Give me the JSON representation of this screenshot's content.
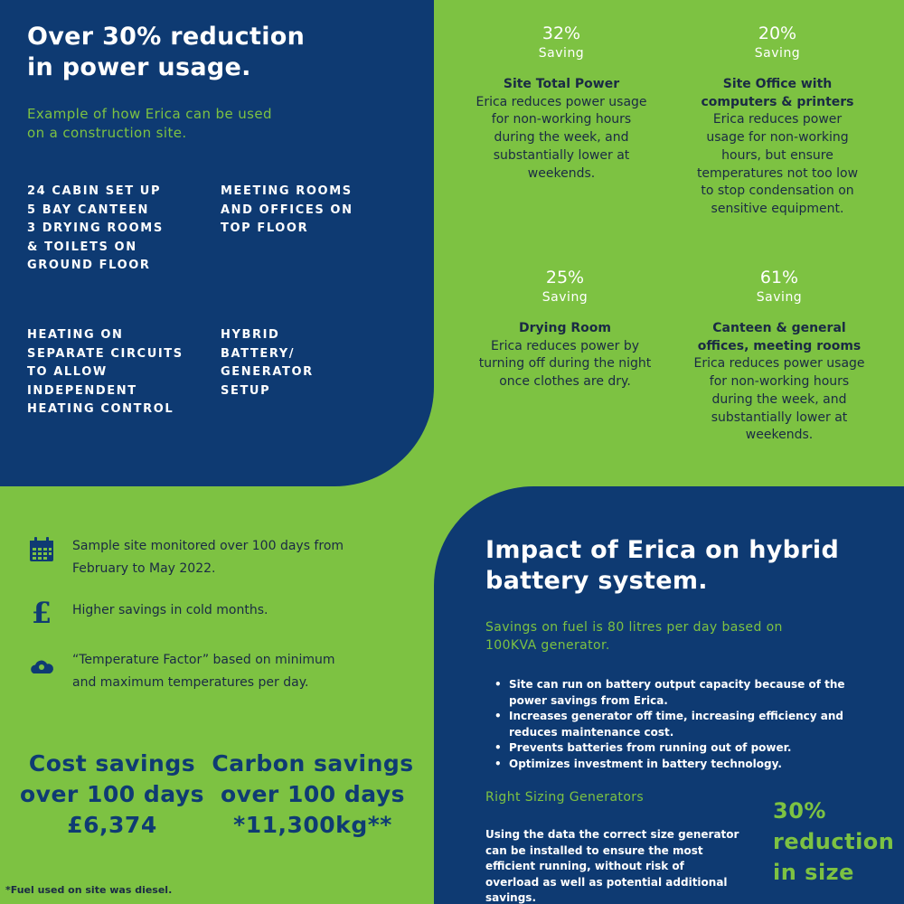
{
  "top_left": {
    "title_line1": "Over 30% reduction",
    "title_line2": "in power usage.",
    "subtitle_line1": "Example of how Erica can be used",
    "subtitle_line2": "on a construction site.",
    "block1": "24 CABIN SET UP\n5 BAY CANTEEN\n3 DRYING ROOMS\n& TOILETS ON\nGROUND FLOOR",
    "block2": "MEETING ROOMS\nAND OFFICES ON\nTOP FLOOR",
    "block3": "HEATING ON\nSEPARATE CIRCUITS\nTO ALLOW\nINDEPENDENT\nHEATING CONTROL",
    "block4": "HYBRID\nBATTERY/\nGENERATOR\nSETUP"
  },
  "stats": [
    {
      "percent": "32%",
      "saving": "Saving",
      "title": "Site Total Power",
      "text": "Erica reduces power usage for non-working hours during the week, and substantially lower at weekends."
    },
    {
      "percent": "20%",
      "saving": "Saving",
      "title": "Site Office with computers & printers",
      "text": "Erica reduces power usage for non-working hours, but ensure temperatures not too low to stop condensation on sensitive equipment."
    },
    {
      "percent": "25%",
      "saving": "Saving",
      "title": "Drying Room",
      "text": "Erica reduces power by turning off during the night once clothes are dry."
    },
    {
      "percent": "61%",
      "saving": "Saving",
      "title": "Canteen & general offices, meeting rooms",
      "text": "Erica reduces power usage for non-working hours during the week, and substantially lower at weekends."
    }
  ],
  "info": {
    "item1_line1": "Sample site monitored over 100 days from",
    "item1_line2": "February to May 2022.",
    "item2": "Higher savings in cold months.",
    "item3_line1": "“Temperature Factor” based on minimum",
    "item3_line2": "and maximum temperatures per day.",
    "icons": [
      "calendar-icon",
      "pound-icon",
      "cloud-sun-icon"
    ]
  },
  "savings": {
    "cost_line1": "Cost savings",
    "cost_line2": "over 100 days",
    "cost_value": "£6,374",
    "carbon_line1": "Carbon savings",
    "carbon_line2": "over 100 days",
    "carbon_value": "*11,300kg**",
    "footnote": "*Fuel used on site was diesel."
  },
  "bottom_right": {
    "title_line1": "Impact of Erica on hybrid",
    "title_line2": "battery system.",
    "fuel_line1": "Savings on fuel is 80 litres per day based on",
    "fuel_line2": "100KVA generator.",
    "bullets": [
      "Site can run on battery output capacity because of the power savings from Erica.",
      "Increases generator off time, increasing efficiency and reduces maintenance cost.",
      "Prevents batteries from running out of power.",
      "Optimizes investment in battery technology."
    ],
    "sizing_heading": "Right Sizing Generators",
    "sizing_text": "Using the data the correct size generator can be installed to ensure the most efficient running, without risk of overload as well as potential additional savings.",
    "reduction_line1": "30%",
    "reduction_line2": "reduction",
    "reduction_line3": "in size"
  },
  "colors": {
    "navy": "#0e3a72",
    "green": "#7dc242",
    "dark_text": "#1a2a44"
  }
}
